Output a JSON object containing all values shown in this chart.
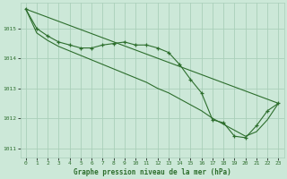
{
  "background_color": "#cce8d8",
  "grid_color": "#aacfba",
  "line_color": "#2d6e2d",
  "title": "Graphe pression niveau de la mer (hPa)",
  "xlim": [
    -0.5,
    23.5
  ],
  "ylim": [
    1010.7,
    1015.85
  ],
  "yticks": [
    1011,
    1012,
    1013,
    1014,
    1015
  ],
  "xticks": [
    0,
    1,
    2,
    3,
    4,
    5,
    6,
    7,
    8,
    9,
    10,
    11,
    12,
    13,
    14,
    15,
    16,
    17,
    18,
    19,
    20,
    21,
    22,
    23
  ],
  "series": [
    {
      "x": [
        0,
        1,
        2,
        3,
        4,
        5,
        6,
        7,
        8,
        9,
        10,
        11,
        12,
        13,
        14,
        15,
        16,
        17,
        18,
        19,
        20,
        21,
        22,
        23
      ],
      "y": [
        1015.65,
        1015.0,
        1014.75,
        1014.55,
        1014.45,
        1014.35,
        1014.35,
        1014.45,
        1014.5,
        1014.55,
        1014.45,
        1014.45,
        1014.35,
        1014.2,
        1013.8,
        1013.3,
        1012.85,
        1011.95,
        1011.85,
        1011.4,
        1011.35,
        1011.75,
        1012.25,
        1012.5
      ],
      "marker": true
    },
    {
      "x": [
        0,
        23
      ],
      "y": [
        1015.65,
        1012.5
      ],
      "marker": false
    },
    {
      "x": [
        0,
        1,
        2,
        3,
        4,
        5,
        6,
        7,
        8,
        9,
        10,
        11,
        12,
        13,
        14,
        15,
        16,
        17,
        18,
        19,
        20,
        21,
        22,
        23
      ],
      "y": [
        1015.65,
        1014.85,
        1014.6,
        1014.4,
        1014.25,
        1014.1,
        1013.95,
        1013.8,
        1013.65,
        1013.5,
        1013.35,
        1013.2,
        1013.0,
        1012.85,
        1012.65,
        1012.45,
        1012.25,
        1012.0,
        1011.8,
        1011.6,
        1011.4,
        1011.55,
        1011.95,
        1012.5
      ],
      "marker": false
    }
  ]
}
